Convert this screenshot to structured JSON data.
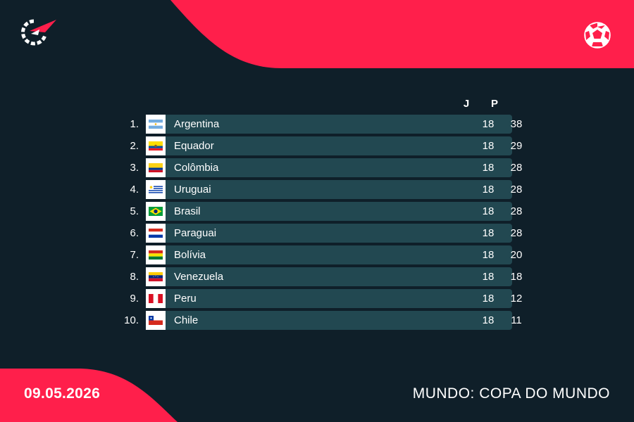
{
  "colors": {
    "background": "#0f1f29",
    "accent": "#ff1f4b",
    "row_bg": "#224851"
  },
  "header": {
    "logo_icon": "flashscore-logo-icon",
    "sport_icon": "soccer-ball-icon"
  },
  "table": {
    "columns": {
      "played": "J",
      "points": "P"
    },
    "rows": [
      {
        "rank": "1.",
        "team": "Argentina",
        "flag": "argentina-flag-icon",
        "played": "18",
        "points": "38"
      },
      {
        "rank": "2.",
        "team": "Equador",
        "flag": "ecuador-flag-icon",
        "played": "18",
        "points": "29"
      },
      {
        "rank": "3.",
        "team": "Colômbia",
        "flag": "colombia-flag-icon",
        "played": "18",
        "points": "28"
      },
      {
        "rank": "4.",
        "team": "Uruguai",
        "flag": "uruguay-flag-icon",
        "played": "18",
        "points": "28"
      },
      {
        "rank": "5.",
        "team": "Brasil",
        "flag": "brazil-flag-icon",
        "played": "18",
        "points": "28"
      },
      {
        "rank": "6.",
        "team": "Paraguai",
        "flag": "paraguay-flag-icon",
        "played": "18",
        "points": "28"
      },
      {
        "rank": "7.",
        "team": "Bolívia",
        "flag": "bolivia-flag-icon",
        "played": "18",
        "points": "20"
      },
      {
        "rank": "8.",
        "team": "Venezuela",
        "flag": "venezuela-flag-icon",
        "played": "18",
        "points": "18"
      },
      {
        "rank": "9.",
        "team": "Peru",
        "flag": "peru-flag-icon",
        "played": "18",
        "points": "12"
      },
      {
        "rank": "10.",
        "team": "Chile",
        "flag": "chile-flag-icon",
        "played": "18",
        "points": "11"
      }
    ]
  },
  "footer": {
    "date": "09.05.2026",
    "competition": "MUNDO: COPA DO MUNDO"
  }
}
